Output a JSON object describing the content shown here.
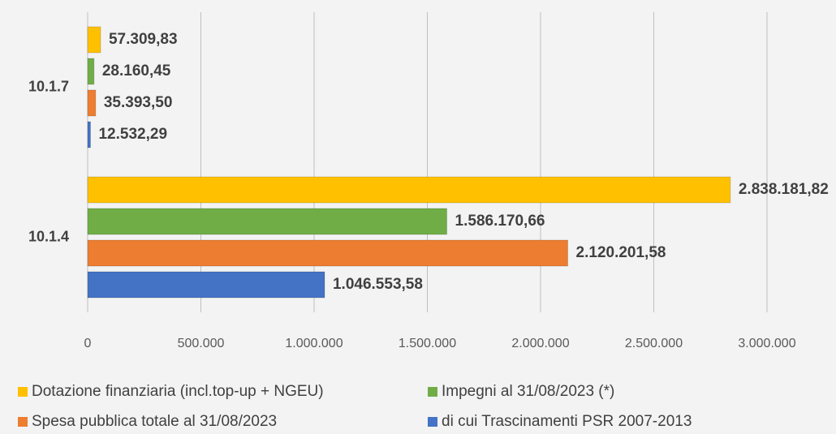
{
  "chart_data": {
    "type": "bar",
    "orientation": "horizontal",
    "categories": [
      "10.1.7",
      "10.1.4"
    ],
    "series": [
      {
        "name": "Dotazione finanziaria (incl.top-up + NGEU)",
        "color": "#ffc000",
        "values": [
          57309.83,
          2838181.82
        ],
        "value_labels": [
          "57.309,83",
          "2.838.181,82"
        ]
      },
      {
        "name": "Impegni al 31/08/2023 (*)",
        "color": "#70ad47",
        "values": [
          28160.45,
          1586170.66
        ],
        "value_labels": [
          "28.160,45",
          "1.586.170,66"
        ]
      },
      {
        "name": "Spesa pubblica totale al 31/08/2023",
        "color": "#ed7d31",
        "values": [
          35393.5,
          2120201.58
        ],
        "value_labels": [
          "35.393,50",
          "2.120.201,58"
        ]
      },
      {
        "name": "di cui Trascinamenti PSR 2007-2013",
        "color": "#4472c4",
        "values": [
          12532.29,
          1046553.58
        ],
        "value_labels": [
          "12.532,29",
          "1.046.553,58"
        ]
      }
    ],
    "xlim": [
      0,
      3000000
    ],
    "xticks": [
      0,
      {
        "value": 500000,
        "label": "500.000"
      },
      {
        "value": 1000000,
        "label": "1.000.000"
      },
      {
        "value": 1500000,
        "label": "1.500.000"
      },
      {
        "value": 2000000,
        "label": "2.000.000"
      },
      {
        "value": 2500000,
        "label": "2.500.000"
      },
      {
        "value": 3000000,
        "label": "3.000.000"
      }
    ],
    "grid": true,
    "legend": "bottom"
  }
}
